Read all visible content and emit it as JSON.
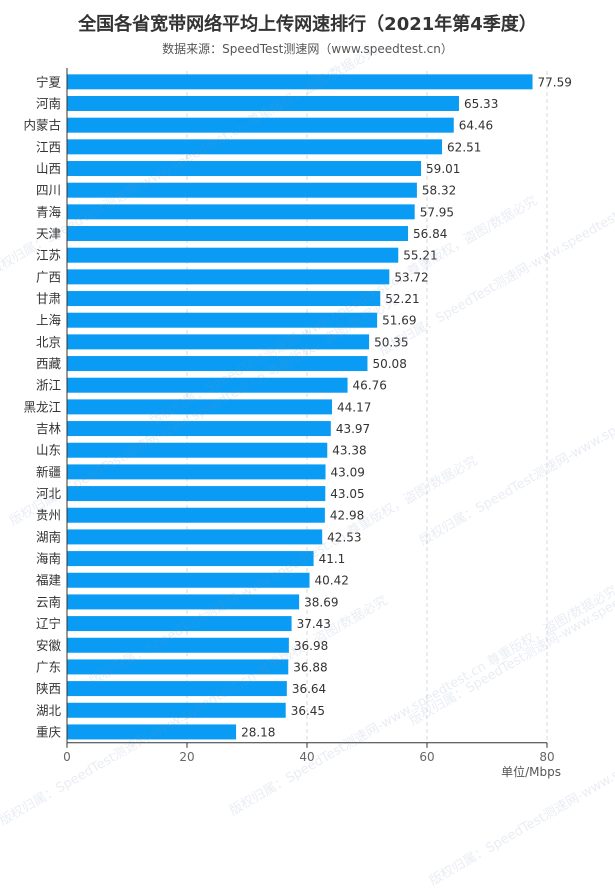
{
  "title": "全国各省宽带网络平均上传网速排行（2021年第4季度）",
  "subtitle": "数据来源：SpeedTest测速网（www.speedtest.cn）",
  "watermark_text": "版权归属：SpeedTest测速网-www.speedtest.cn 尊重版权，盗图/数据必究",
  "colors": {
    "bar": "#0a9cf5",
    "axis": "#333333",
    "grid": "#d9d9d9",
    "text": "#333333"
  },
  "chart_data": {
    "type": "bar",
    "orientation": "horizontal",
    "categories": [
      "宁夏",
      "河南",
      "内蒙古",
      "江西",
      "山西",
      "四川",
      "青海",
      "天津",
      "江苏",
      "广西",
      "甘肃",
      "上海",
      "北京",
      "西藏",
      "浙江",
      "黑龙江",
      "吉林",
      "山东",
      "新疆",
      "河北",
      "贵州",
      "湖南",
      "海南",
      "福建",
      "云南",
      "辽宁",
      "安徽",
      "广东",
      "陕西",
      "湖北",
      "重庆"
    ],
    "values": [
      77.59,
      65.33,
      64.46,
      62.51,
      59.01,
      58.32,
      57.95,
      56.84,
      55.21,
      53.72,
      52.21,
      51.69,
      50.35,
      50.08,
      46.76,
      44.17,
      43.97,
      43.38,
      43.09,
      43.05,
      42.98,
      42.53,
      41.1,
      40.42,
      38.69,
      37.43,
      36.98,
      36.88,
      36.64,
      36.45,
      28.18
    ],
    "value_labels": [
      "77.59",
      "65.33",
      "64.46",
      "62.51",
      "59.01",
      "58.32",
      "57.95",
      "56.84",
      "55.21",
      "53.72",
      "52.21",
      "51.69",
      "50.35",
      "50.08",
      "46.76",
      "44.17",
      "43.97",
      "43.38",
      "43.09",
      "43.05",
      "42.98",
      "42.53",
      "41.1",
      "40.42",
      "38.69",
      "37.43",
      "36.98",
      "36.88",
      "36.64",
      "36.45",
      "28.18"
    ],
    "x_ticks": [
      "0",
      "20",
      "40",
      "60",
      "80"
    ],
    "xlim": [
      0,
      80
    ],
    "xlabel": "单位/Mbps",
    "grid": true
  }
}
